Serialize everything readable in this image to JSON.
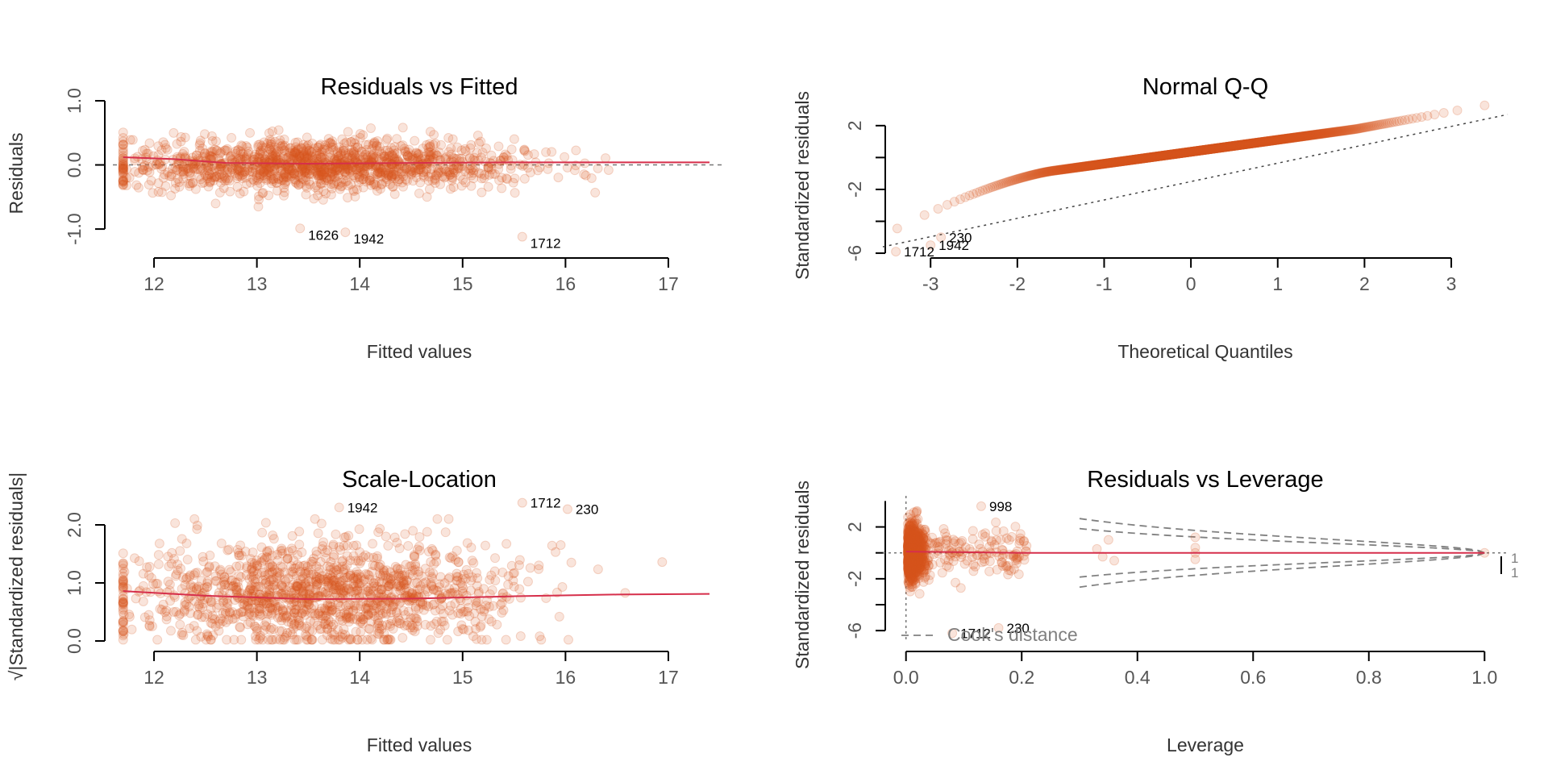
{
  "colors": {
    "points": "#d8561e",
    "smooth": "#d62f4b",
    "ref": "#777777",
    "cook": "#808080"
  },
  "chart_data": [
    {
      "id": "rvf",
      "type": "scatter",
      "title": "Residuals vs Fitted",
      "xlabel": "Fitted values",
      "ylabel": "Residuals",
      "xlim": [
        11.6,
        17.4
      ],
      "ylim": [
        -1.2,
        1.0
      ],
      "xticks": [
        "12",
        "13",
        "14",
        "15",
        "16",
        "17"
      ],
      "yticks": [
        "-1.0",
        "0.0",
        "1.0"
      ],
      "point_cloud": {
        "n": 1400,
        "x_center": 13.6,
        "x_sd": 0.95,
        "x_range": [
          11.7,
          17.4
        ],
        "y_sd": 0.2
      },
      "smooth": {
        "x": [
          11.7,
          12.2,
          12.7,
          13.5,
          14.5,
          15.5,
          16.5,
          17.4
        ],
        "y": [
          0.12,
          0.09,
          0.03,
          0.02,
          0.03,
          0.04,
          0.04,
          0.04
        ]
      },
      "refline_y": 0,
      "outliers": [
        {
          "label": "1626",
          "x": 13.42,
          "y": -0.99
        },
        {
          "label": "1942",
          "x": 13.86,
          "y": -1.05
        },
        {
          "label": "1712",
          "x": 15.58,
          "y": -1.12
        }
      ]
    },
    {
      "id": "qq",
      "type": "scatter",
      "title": "Normal Q-Q",
      "xlabel": "Theoretical Quantiles",
      "ylabel": "Standardized residuals",
      "xlim": [
        -3.55,
        3.65
      ],
      "ylim": [
        -6.2,
        2.8
      ],
      "xticks": [
        "-3",
        "-2",
        "-1",
        "0",
        "1",
        "2",
        "3"
      ],
      "yticks": [
        "-6",
        "-2",
        "2"
      ],
      "point_cloud": {
        "n": 1400
      },
      "refline": {
        "x": [
          -3.55,
          3.65
        ],
        "y": [
          -5.6,
          2.7
        ]
      },
      "outliers": [
        {
          "label": "1712",
          "x": -3.4,
          "y": -5.9
        },
        {
          "label": "1942",
          "x": -3.0,
          "y": -5.5
        },
        {
          "label": "230",
          "x": -2.88,
          "y": -5.0
        }
      ]
    },
    {
      "id": "sl",
      "type": "scatter",
      "title": "Scale-Location",
      "xlabel": "Fitted values",
      "ylabel": "√|Standardized residuals|",
      "xlim": [
        11.6,
        17.4
      ],
      "ylim": [
        0,
        2.5
      ],
      "xticks": [
        "12",
        "13",
        "14",
        "15",
        "16",
        "17"
      ],
      "yticks": [
        "0.0",
        "1.0",
        "2.0"
      ],
      "point_cloud": {
        "n": 1400,
        "x_center": 13.6,
        "x_sd": 0.95,
        "x_range": [
          11.7,
          17.4
        ],
        "y_mean": 0.8,
        "y_sd": 0.45
      },
      "smooth": {
        "x": [
          11.7,
          12.5,
          13.5,
          14.5,
          15.5,
          16.5,
          17.4
        ],
        "y": [
          0.86,
          0.78,
          0.72,
          0.73,
          0.77,
          0.8,
          0.81
        ]
      },
      "outliers": [
        {
          "label": "1942",
          "x": 13.8,
          "y": 2.3
        },
        {
          "label": "1712",
          "x": 15.58,
          "y": 2.38
        },
        {
          "label": "230",
          "x": 16.02,
          "y": 2.27
        }
      ]
    },
    {
      "id": "rvl",
      "type": "scatter",
      "title": "Residuals vs Leverage",
      "xlabel": "Leverage",
      "ylabel": "Standardized residuals",
      "xlim": [
        -0.04,
        1.04
      ],
      "ylim": [
        -6.8,
        4.4
      ],
      "xticks": [
        "0.0",
        "0.2",
        "0.4",
        "0.6",
        "0.8",
        "1.0"
      ],
      "yticks": [
        "-6",
        "-2",
        "2"
      ],
      "point_cloud": {
        "n": 1300
      },
      "smooth": {
        "x": [
          0.0,
          0.1,
          0.2,
          0.5,
          1.0
        ],
        "y": [
          0.1,
          0.05,
          0.0,
          0.0,
          0.0
        ]
      },
      "legend": "Cook's distance",
      "cook_levels": [
        "1",
        "1"
      ],
      "outliers": [
        {
          "label": "998",
          "x": 0.13,
          "y": 3.6
        },
        {
          "label": "1712",
          "x": 0.08,
          "y": -6.2
        },
        {
          "label": "230",
          "x": 0.16,
          "y": -5.8
        }
      ]
    }
  ]
}
